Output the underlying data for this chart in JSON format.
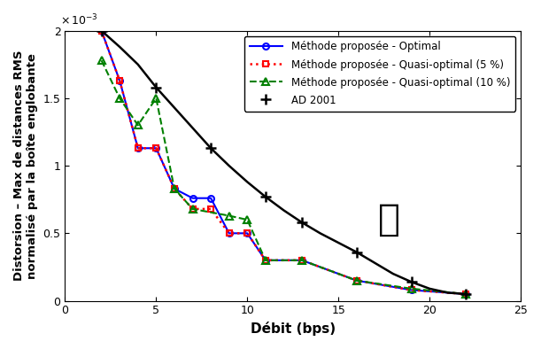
{
  "xlabel": "Débit (bps)",
  "ylabel": "Distorsion – Max de distances RMS\nnormalisé par la boîte englobante",
  "xlim": [
    0,
    25
  ],
  "ylim": [
    0,
    0.002
  ],
  "yticks": [
    0,
    0.0005,
    0.001,
    0.0015,
    0.002
  ],
  "ytick_labels": [
    "0",
    "0.5",
    "1",
    "1.5",
    "2"
  ],
  "xticks": [
    0,
    5,
    10,
    15,
    20,
    25
  ],
  "optimal_x": [
    2,
    3,
    4,
    5,
    6,
    7,
    8,
    9,
    10,
    11,
    13,
    16,
    19,
    22
  ],
  "optimal_y": [
    0.002,
    0.00163,
    0.00113,
    0.00113,
    0.00083,
    0.00076,
    0.00076,
    0.0005,
    0.0005,
    0.0003,
    0.0003,
    0.00015,
    8e-05,
    5e-05
  ],
  "quasi5_x": [
    2,
    3,
    4,
    5,
    6,
    7,
    8,
    9,
    10,
    11,
    13,
    16,
    19,
    22
  ],
  "quasi5_y": [
    0.002,
    0.00163,
    0.00113,
    0.00113,
    0.00083,
    0.00068,
    0.00068,
    0.0005,
    0.0005,
    0.0003,
    0.0003,
    0.00015,
    8e-05,
    5e-05
  ],
  "quasi10_x": [
    2,
    3,
    4,
    5,
    6,
    7,
    9,
    10,
    11,
    13,
    16,
    19,
    22
  ],
  "quasi10_y": [
    0.00178,
    0.0015,
    0.0013,
    0.0015,
    0.00083,
    0.00068,
    0.00063,
    0.0006,
    0.0003,
    0.0003,
    0.00015,
    9e-05,
    5e-05
  ],
  "ad2001_x": [
    2,
    3,
    4,
    5,
    6,
    7,
    8,
    9,
    10,
    11,
    12,
    13,
    14,
    15,
    16,
    17,
    18,
    19,
    20,
    21,
    22
  ],
  "ad2001_y": [
    0.002,
    0.00188,
    0.00175,
    0.00158,
    0.00143,
    0.00128,
    0.00113,
    0.001,
    0.00088,
    0.00077,
    0.00067,
    0.00058,
    0.0005,
    0.00043,
    0.00036,
    0.00028,
    0.0002,
    0.00014,
    9e-05,
    6e-05,
    5e-05
  ],
  "ad2001_marker_x": [
    2,
    5,
    8,
    11,
    13,
    16,
    19,
    22
  ],
  "ad2001_marker_y": [
    0.002,
    0.00158,
    0.00113,
    0.00077,
    0.00058,
    0.00036,
    0.00014,
    5e-05
  ],
  "color_optimal": "#0000ff",
  "color_quasi5": "#ff0000",
  "color_quasi10": "#008000",
  "color_ad2001": "#000000",
  "legend_optimal": "Méthode proposée - Optimal",
  "legend_quasi5": "Méthode proposée - Quasi-optimal (5 %)",
  "legend_quasi10": "Méthode proposée - Quasi-optimal (10 %)",
  "legend_ad2001": "AD 2001"
}
